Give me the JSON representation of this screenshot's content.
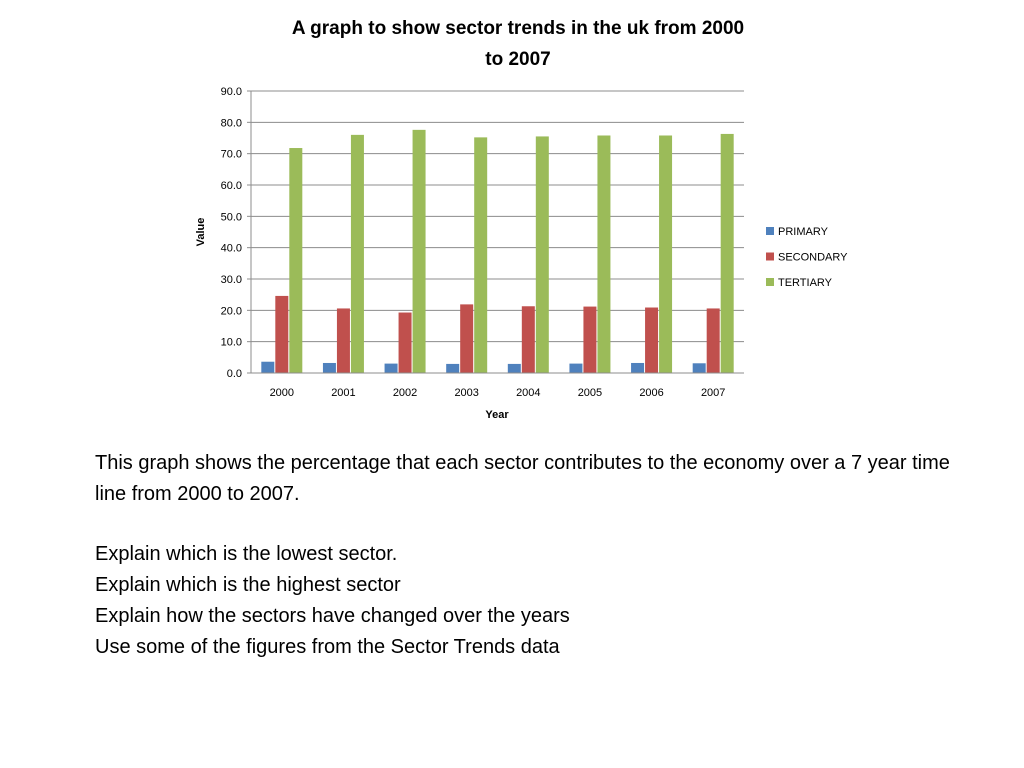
{
  "chart_data": {
    "type": "bar",
    "title": "A graph to show sector trends in the uk from 2000 to 2007",
    "title_lines": [
      "A graph to show sector trends in the uk from 2000",
      "to 2007"
    ],
    "xlabel": "Year",
    "ylabel": "Value",
    "categories": [
      "2000",
      "2001",
      "2002",
      "2003",
      "2004",
      "2005",
      "2006",
      "2007"
    ],
    "ylim": [
      0,
      90
    ],
    "yticks": [
      "0.0",
      "10.0",
      "20.0",
      "30.0",
      "40.0",
      "50.0",
      "60.0",
      "70.0",
      "80.0",
      "90.0"
    ],
    "grid": true,
    "legend_position": "right",
    "series": [
      {
        "name": "PRIMARY",
        "color": "#4F81BD",
        "values": [
          3.6,
          3.2,
          3.0,
          2.9,
          2.9,
          3.0,
          3.2,
          3.1
        ]
      },
      {
        "name": "SECONDARY",
        "color": "#C0504D",
        "values": [
          24.6,
          20.6,
          19.3,
          21.9,
          21.3,
          21.2,
          20.9,
          20.6
        ]
      },
      {
        "name": "TERTIARY",
        "color": "#9BBB59",
        "values": [
          71.8,
          76.0,
          77.6,
          75.2,
          75.5,
          75.8,
          75.8,
          76.3
        ]
      }
    ]
  },
  "text": {
    "intro": "This graph shows the percentage that each sector contributes to the economy over a 7 year time line from 2000 to 2007.",
    "instructions": [
      "Explain which is the lowest sector.",
      "Explain which is the highest sector",
      "Explain how the sectors have changed over the years",
      "Use some of the figures from the Sector Trends data"
    ]
  }
}
